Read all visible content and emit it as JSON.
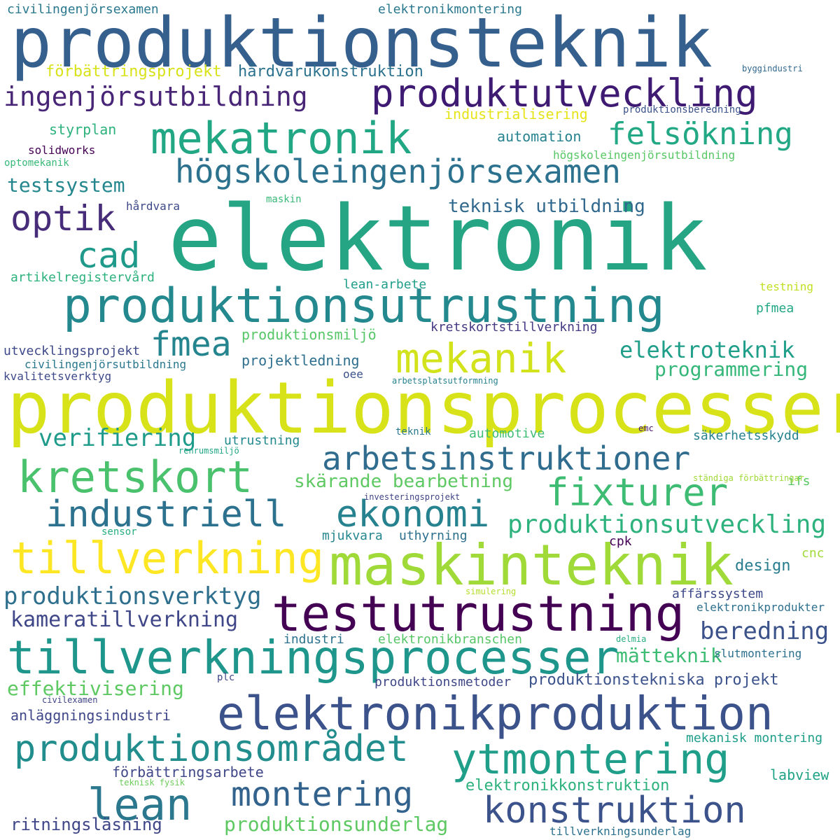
{
  "words": [
    {
      "text": "produktionsteknik",
      "color": "#355f8d"
    },
    {
      "text": "elektronik",
      "color": "#25a584"
    },
    {
      "text": "produktionsprocesser",
      "color": "#d8e219"
    },
    {
      "text": "maskinteknik",
      "color": "#a0da39"
    },
    {
      "text": "testutrustning",
      "color": "#440154"
    },
    {
      "text": "tillverkningsprocesser",
      "color": "#1f968b"
    },
    {
      "text": "elektronikproduktion",
      "color": "#3b528b"
    },
    {
      "text": "produktionsutrustning",
      "color": "#23898e"
    },
    {
      "text": "kretskort",
      "color": "#4ac16d"
    },
    {
      "text": "tillverkning",
      "color": "#fde725"
    },
    {
      "text": "mekatronik",
      "color": "#22a785"
    },
    {
      "text": "mekanik",
      "color": "#d2e21b"
    },
    {
      "text": "produktutveckling",
      "color": "#3e1a72"
    },
    {
      "text": "lean",
      "color": "#2a778e"
    },
    {
      "text": "ytmontering",
      "color": "#1f9e89"
    },
    {
      "text": "högskoleingenjörsexamen",
      "color": "#2c728e"
    },
    {
      "text": "arbetsinstruktioner",
      "color": "#2f6c8e"
    },
    {
      "text": "fixturer",
      "color": "#3fbc73"
    },
    {
      "text": "industriell",
      "color": "#2c728e"
    },
    {
      "text": "ekonomi",
      "color": "#26828e"
    },
    {
      "text": "produktionsområdet",
      "color": "#218e8d"
    },
    {
      "text": "konstruktion",
      "color": "#3b528b"
    },
    {
      "text": "montering",
      "color": "#33638d"
    },
    {
      "text": "felsökning",
      "color": "#22a884"
    },
    {
      "text": "ingenjörsutbildning",
      "color": "#482576"
    },
    {
      "text": "optik",
      "color": "#472c7a"
    },
    {
      "text": "cad",
      "color": "#1f9a8a"
    },
    {
      "text": "fmea",
      "color": "#25858e"
    },
    {
      "text": "produktionsverktyg",
      "color": "#2e6f8e"
    },
    {
      "text": "produktionsutveckling",
      "color": "#2db27d"
    },
    {
      "text": "elektroteknik",
      "color": "#1f9e89"
    },
    {
      "text": "kameratillverkning",
      "color": "#3f4788"
    },
    {
      "text": "beredning",
      "color": "#3b528b"
    },
    {
      "text": "verifiering",
      "color": "#1e9b8a"
    },
    {
      "text": "programmering",
      "color": "#35b779"
    },
    {
      "text": "testsystem",
      "color": "#24878e"
    },
    {
      "text": "effektivisering",
      "color": "#5ec962"
    },
    {
      "text": "mätteknik",
      "color": "#3dbc74"
    },
    {
      "text": "teknisk utbildning",
      "color": "#31688e"
    },
    {
      "text": "skärande bearbetning",
      "color": "#5ec962"
    },
    {
      "text": "hårdvarukonstruktion",
      "color": "#2c728e"
    },
    {
      "text": "förbättringsprojekt",
      "color": "#d8e219"
    },
    {
      "text": "produktionsunderlag",
      "color": "#5ec962"
    },
    {
      "text": "ritningsläsning",
      "color": "#3f4788"
    },
    {
      "text": "produktionstekniska projekt",
      "color": "#3b528b"
    },
    {
      "text": "anläggningsindustri",
      "color": "#3f4788"
    },
    {
      "text": "elektronikkonstruktion",
      "color": "#2db27d"
    },
    {
      "text": "civilingenjörsexamen",
      "color": "#2a788e"
    },
    {
      "text": "elektronikmontering",
      "color": "#2a788e"
    },
    {
      "text": "industrialisering",
      "color": "#e5e419"
    },
    {
      "text": "produktionsberedning",
      "color": "#3b528b"
    },
    {
      "text": "styrplan",
      "color": "#2db27d"
    },
    {
      "text": "automation",
      "color": "#26828e"
    },
    {
      "text": "solidworks",
      "color": "#440154"
    },
    {
      "text": "högskoleingenjörsutbildning",
      "color": "#58c765"
    },
    {
      "text": "optomekanik",
      "color": "#38b977"
    },
    {
      "text": "hårdvara",
      "color": "#3e4989"
    },
    {
      "text": "maskin",
      "color": "#38b977"
    },
    {
      "text": "artikelregistervård",
      "color": "#2db27d"
    },
    {
      "text": "lean-arbete",
      "color": "#1f9e89"
    },
    {
      "text": "testning",
      "color": "#c2df23"
    },
    {
      "text": "pfmea",
      "color": "#22a785"
    },
    {
      "text": "produktionsmiljö",
      "color": "#56c667"
    },
    {
      "text": "kretskortstillverkning",
      "color": "#443983"
    },
    {
      "text": "utvecklingsprojekt",
      "color": "#3e4989"
    },
    {
      "text": "projektledning",
      "color": "#2e6f8e"
    },
    {
      "text": "civilingenjörsutbildning",
      "color": "#2a788e"
    },
    {
      "text": "kvalitetsverktyg",
      "color": "#3e4989"
    },
    {
      "text": "oee",
      "color": "#3b528b"
    },
    {
      "text": "arbetsplatsutformning",
      "color": "#26828e"
    },
    {
      "text": "teknik",
      "color": "#2a788e"
    },
    {
      "text": "automotive",
      "color": "#3dbc74"
    },
    {
      "text": "emc",
      "color": "#48186a"
    },
    {
      "text": "utrustning",
      "color": "#23898e"
    },
    {
      "text": "renrumsmiljö",
      "color": "#21a685"
    },
    {
      "text": "säkerhetsskydd",
      "color": "#26828e"
    },
    {
      "text": "ifs",
      "color": "#58c765"
    },
    {
      "text": "ständiga förbättringar",
      "color": "#a0da39"
    },
    {
      "text": "investeringsprojekt",
      "color": "#414487"
    },
    {
      "text": "sensor",
      "color": "#27ad81"
    },
    {
      "text": "mjukvara",
      "color": "#24878e"
    },
    {
      "text": "uthyrning",
      "color": "#2d708e"
    },
    {
      "text": "cpk",
      "color": "#440154"
    },
    {
      "text": "cnc",
      "color": "#a0da39"
    },
    {
      "text": "design",
      "color": "#287c8e"
    },
    {
      "text": "simulering",
      "color": "#b5de2b"
    },
    {
      "text": "affärssystem",
      "color": "#3e4989"
    },
    {
      "text": "elektronikprodukter",
      "color": "#2d708e"
    },
    {
      "text": "industri",
      "color": "#2c728e"
    },
    {
      "text": "elektronikbranschen",
      "color": "#56c667"
    },
    {
      "text": "delmia",
      "color": "#27ad81"
    },
    {
      "text": "slutmontering",
      "color": "#2d708e"
    },
    {
      "text": "plc",
      "color": "#3f4788"
    },
    {
      "text": "produktionsmetoder",
      "color": "#3f4788"
    },
    {
      "text": "civilexamen",
      "color": "#414487"
    },
    {
      "text": "mekanisk montering",
      "color": "#1f9e89"
    },
    {
      "text": "förbättringsarbete",
      "color": "#3f4788"
    },
    {
      "text": "teknisk fysik",
      "color": "#6ccd5a"
    },
    {
      "text": "labview",
      "color": "#20a386"
    },
    {
      "text": "tillverkningsunderlag",
      "color": "#2c728e"
    },
    {
      "text": "byggindustri",
      "color": "#31688e"
    }
  ]
}
